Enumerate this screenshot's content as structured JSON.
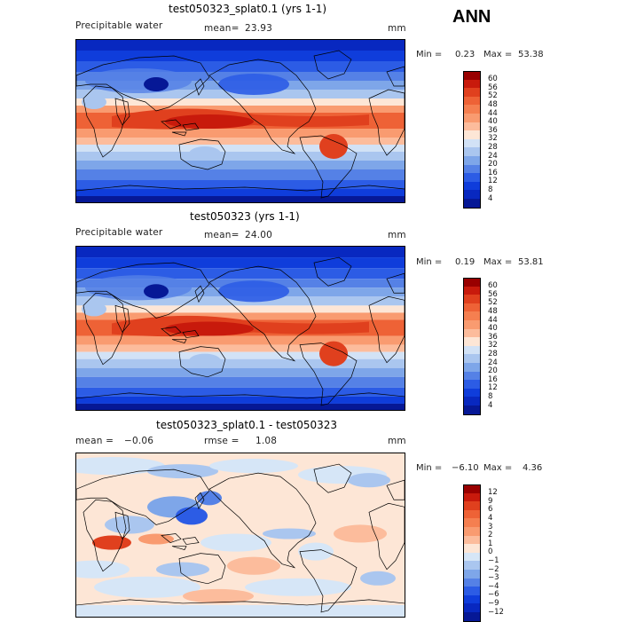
{
  "header": {
    "season": "ANN"
  },
  "panels": [
    {
      "title": "test050323_splat0.1 (yrs 1-1)",
      "left_label": "Precipitable water",
      "mean_label": "mean=",
      "mean_value": "23.93",
      "units": "mm",
      "min_label": "Min =",
      "min_value": "0.23",
      "max_label": "Max =",
      "max_value": "53.38",
      "colorbar": {
        "ticks": [
          "60",
          "56",
          "52",
          "48",
          "44",
          "40",
          "36",
          "32",
          "28",
          "24",
          "20",
          "16",
          "12",
          "8",
          "4"
        ],
        "colors": [
          "#990000",
          "#c81a0c",
          "#e0401e",
          "#ee6236",
          "#f57f50",
          "#f99b70",
          "#fcbc9c",
          "#fde6d6",
          "#d2e2f6",
          "#aac6ef",
          "#7ea6e9",
          "#5581e6",
          "#2c5ce5",
          "#0f3ddb",
          "#0828c0",
          "#061896"
        ]
      },
      "field": "full"
    },
    {
      "title": "test050323 (yrs 1-1)",
      "left_label": "Precipitable water",
      "mean_label": "mean=",
      "mean_value": "24.00",
      "units": "mm",
      "min_label": "Min =",
      "min_value": "0.19",
      "max_label": "Max =",
      "max_value": "53.81",
      "colorbar": {
        "ticks": [
          "60",
          "56",
          "52",
          "48",
          "44",
          "40",
          "36",
          "32",
          "28",
          "24",
          "20",
          "16",
          "12",
          "8",
          "4"
        ],
        "colors": [
          "#990000",
          "#c81a0c",
          "#e0401e",
          "#ee6236",
          "#f57f50",
          "#f99b70",
          "#fcbc9c",
          "#fde6d6",
          "#d2e2f6",
          "#aac6ef",
          "#7ea6e9",
          "#5581e6",
          "#2c5ce5",
          "#0f3ddb",
          "#0828c0",
          "#061896"
        ]
      },
      "field": "full"
    },
    {
      "title": "test050323_splat0.1 - test050323",
      "left_label": "mean =",
      "mean_label": "rmse =",
      "left_value": "−0.06",
      "mean_value": "1.08",
      "units": "mm",
      "min_label": "Min =",
      "min_value": "−6.10",
      "max_label": "Max =",
      "max_value": "4.36",
      "colorbar": {
        "ticks": [
          "12",
          "9",
          "6",
          "4",
          "3",
          "2",
          "1",
          "0",
          "−1",
          "−2",
          "−3",
          "−4",
          "−6",
          "−9",
          "−12"
        ],
        "colors": [
          "#990000",
          "#c81a0c",
          "#e0401e",
          "#ee6236",
          "#f57f50",
          "#f99b70",
          "#fcbc9c",
          "#fde6d6",
          "#d6e6f7",
          "#aac6ef",
          "#7ea6e9",
          "#5581e6",
          "#2c5ce5",
          "#0f3ddb",
          "#0828c0",
          "#061896"
        ]
      },
      "field": "diff"
    }
  ],
  "colors": {
    "deep_blue": "#061896",
    "tropical_red": "#e0401e",
    "pale": "#fde6d6"
  }
}
